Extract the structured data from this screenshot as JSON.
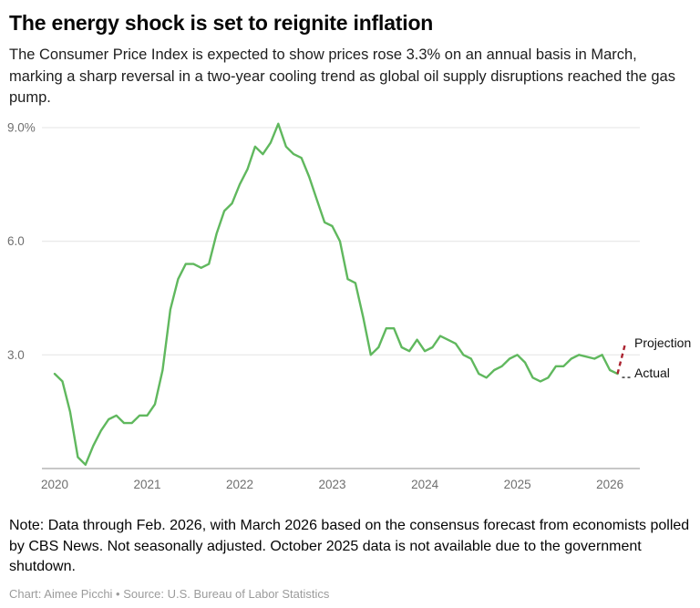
{
  "header": {
    "title": "The energy shock is set to reignite inflation",
    "subtitle": "The Consumer Price Index is expected to show prices rose 3.3% on an annual basis in March, marking a sharp reversal in a two-year cooling trend as global oil supply disruptions reached the gas pump."
  },
  "chart_data": {
    "type": "line",
    "x_unit": "monthly, Jan 2020 to Mar 2026",
    "x_ticks": [
      "2020",
      "2021",
      "2022",
      "2023",
      "2024",
      "2025",
      "2026"
    ],
    "y_ticks": [
      "9.0%",
      "6.0",
      "3.0"
    ],
    "y_tick_values": [
      9,
      6,
      3
    ],
    "ylim": [
      0,
      9.3
    ],
    "grid": "horizontal only",
    "legend": "inline labels at right edge",
    "colors": {
      "grid": "#e4e4e4",
      "axis": "#8f8f8f",
      "tick_text": "#6f6f6f"
    },
    "series": [
      {
        "name": "Actual",
        "color": "#60b85e",
        "style": "solid",
        "start": "2020-01",
        "values": [
          2.5,
          2.3,
          1.5,
          0.3,
          0.1,
          0.6,
          1.0,
          1.3,
          1.4,
          1.2,
          1.2,
          1.4,
          1.4,
          1.7,
          2.6,
          4.2,
          5.0,
          5.4,
          5.4,
          5.3,
          5.4,
          6.2,
          6.8,
          7.0,
          7.5,
          7.9,
          8.5,
          8.3,
          8.6,
          9.1,
          8.5,
          8.3,
          8.2,
          7.7,
          7.1,
          6.5,
          6.4,
          6.0,
          5.0,
          4.9,
          4.0,
          3.0,
          3.2,
          3.7,
          3.7,
          3.2,
          3.1,
          3.4,
          3.1,
          3.2,
          3.5,
          3.4,
          3.3,
          3.0,
          2.9,
          2.5,
          2.4,
          2.6,
          2.7,
          2.9,
          3.0,
          2.8,
          2.4,
          2.3,
          2.4,
          2.7,
          2.7,
          2.9,
          3.0,
          null,
          2.9,
          3.0,
          2.6,
          2.5
        ]
      },
      {
        "name": "Projection",
        "color": "#ab2330",
        "style": "dashed",
        "start": "2026-02",
        "values": [
          2.5,
          3.3
        ]
      }
    ],
    "annotations": {
      "projection": "Projection",
      "actual": "Actual"
    }
  },
  "footer": {
    "note": "Note: Data through Feb. 2026, with March 2026 based on the consensus forecast from economists polled by CBS News. Not seasonally adjusted. October 2025 data is not available due to the government shutdown.",
    "credit": "Chart: Aimee Picchi • Source: U.S. Bureau of Labor Statistics"
  }
}
